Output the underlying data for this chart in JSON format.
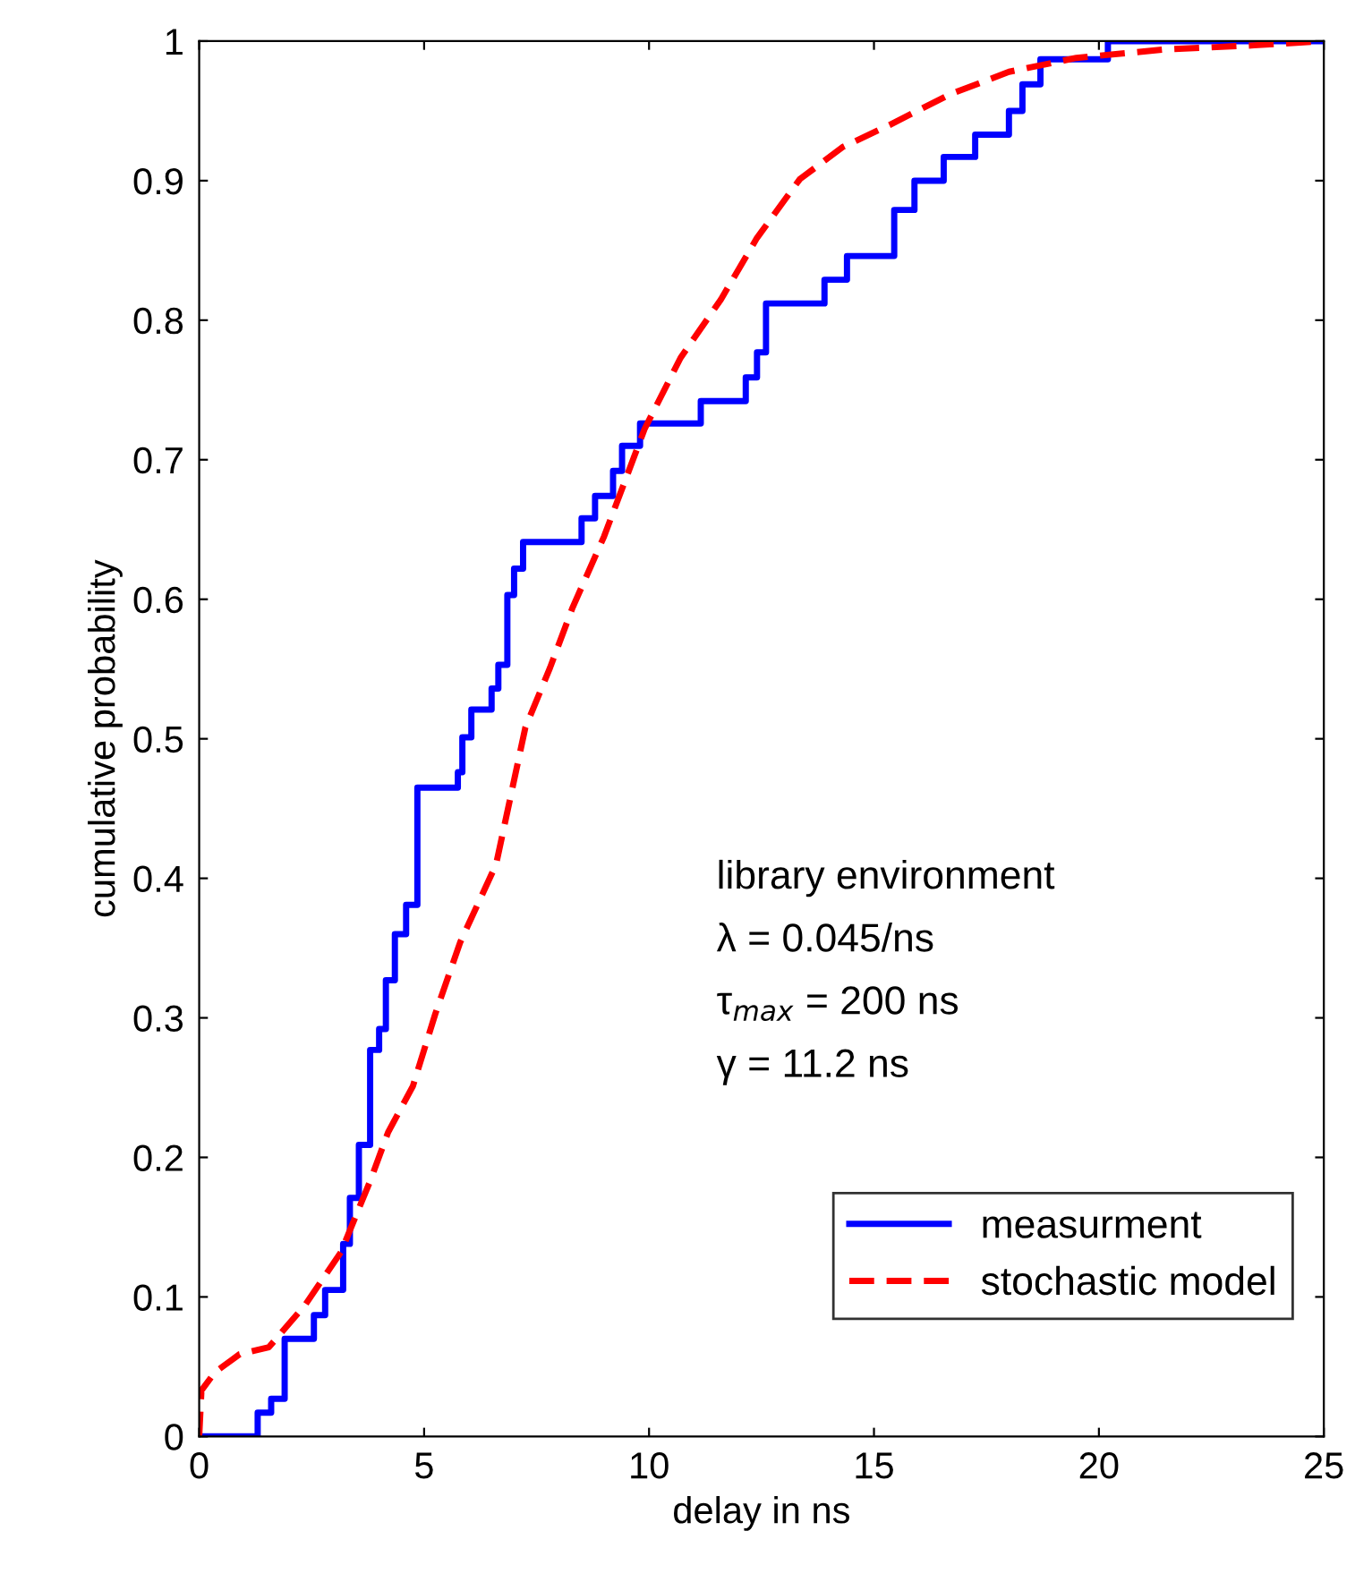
{
  "chart_data": {
    "type": "line",
    "xlabel": "delay in ns",
    "ylabel": "cumulative probability",
    "xlim": [
      0,
      25
    ],
    "ylim": [
      0,
      1
    ],
    "xticks": [
      0,
      5,
      10,
      15,
      20,
      25
    ],
    "yticks": [
      0,
      0.1,
      0.2,
      0.3,
      0.4,
      0.5,
      0.6,
      0.7,
      0.8,
      0.9,
      1
    ],
    "grid": false,
    "legend": "bottom right",
    "marker": "none",
    "annotations": [
      "library environment",
      "λ = 0.045/ns",
      "τ$_{max}$ = 200 ns",
      "γ = 11.2 ns"
    ],
    "series": [
      {
        "name": "measurment",
        "type": "step",
        "color": "#0000ff",
        "line_style": "solid",
        "x": [
          0,
          1.3,
          1.6,
          1.9,
          2.55,
          2.8,
          3.2,
          3.35,
          3.55,
          3.8,
          4.0,
          4.15,
          4.35,
          4.6,
          4.85,
          5.75,
          5.85,
          6.05,
          6.5,
          6.65,
          6.85,
          7.0,
          7.2,
          8.5,
          8.8,
          9.2,
          9.4,
          9.8,
          11.15,
          12.15,
          12.4,
          12.6,
          13.9,
          14.4,
          15.45,
          15.9,
          16.55,
          17.25,
          18.0,
          18.3,
          18.7,
          20.2,
          25
        ],
        "values": [
          0,
          0.017,
          0.027,
          0.07,
          0.087,
          0.105,
          0.138,
          0.171,
          0.209,
          0.277,
          0.292,
          0.327,
          0.36,
          0.381,
          0.465,
          0.476,
          0.501,
          0.521,
          0.536,
          0.553,
          0.603,
          0.622,
          0.641,
          0.658,
          0.674,
          0.692,
          0.71,
          0.726,
          0.742,
          0.759,
          0.777,
          0.812,
          0.829,
          0.846,
          0.879,
          0.9,
          0.917,
          0.933,
          0.95,
          0.969,
          0.987,
          1,
          1
        ]
      },
      {
        "name": "stochastic model",
        "color": "#ff0000",
        "line_style": "dashed",
        "x": [
          0,
          0.05,
          0.35,
          0.9,
          1.55,
          2.35,
          3.15,
          3.8,
          4.2,
          4.75,
          5.25,
          5.8,
          6.6,
          7.25,
          7.8,
          8.3,
          9.0,
          9.9,
          10.7,
          11.6,
          12.4,
          13.35,
          14.3,
          15.35,
          16.7,
          18.0,
          19.5,
          21.45,
          23.45,
          25
        ],
        "values": [
          0,
          0.033,
          0.046,
          0.059,
          0.064,
          0.094,
          0.132,
          0.183,
          0.218,
          0.251,
          0.303,
          0.354,
          0.41,
          0.508,
          0.551,
          0.594,
          0.645,
          0.722,
          0.773,
          0.815,
          0.859,
          0.901,
          0.924,
          0.94,
          0.962,
          0.978,
          0.988,
          0.994,
          0.997,
          1
        ]
      }
    ]
  }
}
